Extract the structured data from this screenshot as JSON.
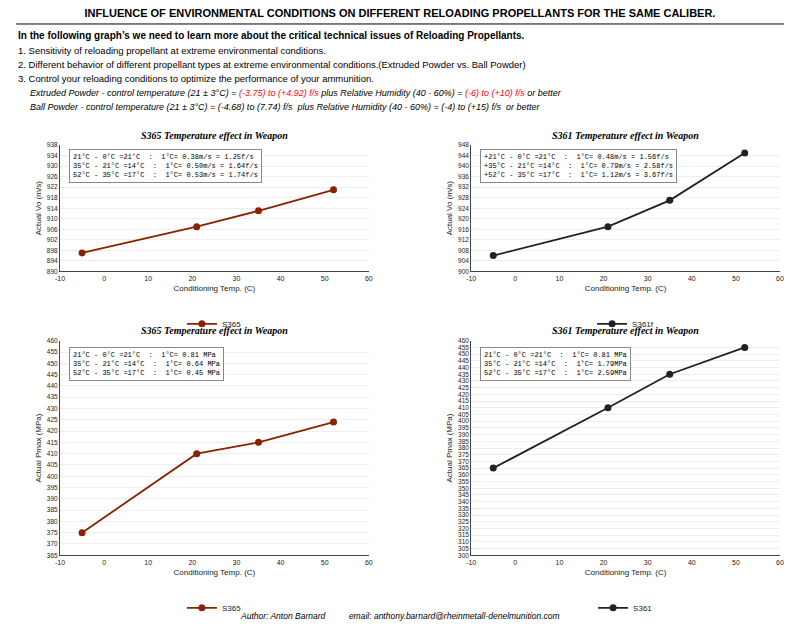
{
  "title": "INFLUENCE OF ENVIRONMENTAL CONDITIONS ON DIFFERENT RELOADING PROPELLANTS FOR THE SAME CALIBER.",
  "subtitle": "In the following graph’s we need to learn more about the critical technical issues of Reloading Propellants.",
  "annotations": [
    "1. Sensitivity of reloading propellant at extreme environmental conditions.",
    "2. Different behavior of different propellant types at extreme environmental conditions.(Extruded Powder vs. Ball Powder)",
    "3. Control your reloading conditions to optimize the performance of your ammunition.",
    [
      {
        "text": "Extruded Powder - control temperature (21 ± 3°C) = ",
        "color": "black"
      },
      {
        "text": "(-3.75) to (+4.92) f/s",
        "color": "red"
      },
      {
        "text": " plus Relative Humidity (40 - 60%) = ",
        "color": "black"
      },
      {
        "text": "(-6) to (+10) f/s",
        "color": "red"
      },
      {
        "text": " or better",
        "color": "black"
      }
    ],
    [
      {
        "text": "Ball Powder - control temperature (21 ± 3°C) = (-4.68) to (7.74) f/s  plus Relative Humidity (40 - 60%) = (-4) to (+15) f/s  or better",
        "color": "black"
      }
    ]
  ],
  "footer": "Author: Anton Barnard          email: anthony.barnard@rheinmetall-denelmunition.com",
  "chart_data": [
    {
      "type": "line",
      "title": "S365 Temperature effect in Weapon",
      "xlabel": "Conditioning Temp. (C)",
      "ylabel": "Actual Vo (m/s)",
      "x": [
        -5,
        21,
        35,
        52
      ],
      "series": [
        {
          "name": "S365",
          "color": "#882200",
          "marker": "circle",
          "values": [
            897,
            907,
            913,
            921
          ]
        }
      ],
      "xlim": [
        -10,
        60
      ],
      "xticks": [
        -10,
        0,
        10,
        20,
        30,
        40,
        50,
        60
      ],
      "ylim": [
        890,
        938
      ],
      "yticks": [
        890,
        894,
        898,
        902,
        906,
        910,
        914,
        918,
        922,
        926,
        930,
        934,
        938
      ],
      "grid": "y",
      "legend": "bottom",
      "annotations": [
        "21°C - 0°C =21°C  :  1°C= 0.38m/s = 1.25f/s",
        "35°C - 21°C =14°C  :  1°C= 0.50m/s = 1.64f/s",
        "52°C - 35°C =17°C  :  1°C= 0.53m/s = 1.74f/s"
      ]
    },
    {
      "type": "line",
      "title": "S361 Temperature effect in Weapon",
      "xlabel": "Conditioning Temp. (C)",
      "ylabel": "Actual Vo (m/s)",
      "x": [
        -5,
        21,
        35,
        52
      ],
      "series": [
        {
          "name": "S361f",
          "color": "#222222",
          "marker": "circle",
          "values": [
            906,
            917,
            927,
            945
          ]
        }
      ],
      "xlim": [
        -10,
        60
      ],
      "xticks": [
        -10,
        0,
        10,
        20,
        30,
        40,
        50,
        60
      ],
      "ylim": [
        900,
        948
      ],
      "yticks": [
        900,
        904,
        908,
        912,
        916,
        920,
        924,
        928,
        932,
        936,
        940,
        944,
        948
      ],
      "grid": "y",
      "legend": "bottom",
      "annotations": [
        "+21°C - 0°C =21°C  :  1°C= 0.48m/s = 1.56f/s",
        "+35°C - 21°C =14°C  :  1°C= 0.79m/s = 2.58f/s",
        "+52°C - 35°C =17°C  :  1°C= 1.12m/s = 3.67f/s"
      ]
    },
    {
      "type": "line",
      "title": "S365 Temperature effect in Weapon",
      "xlabel": "Conditioning Temp. (C)",
      "ylabel": "Actual Pmax (MPa)",
      "x": [
        -5,
        21,
        35,
        52
      ],
      "series": [
        {
          "name": "S365",
          "color": "#882200",
          "marker": "circle",
          "values": [
            375,
            410,
            415,
            424
          ]
        }
      ],
      "xlim": [
        -10,
        60
      ],
      "xticks": [
        -10,
        0,
        10,
        20,
        30,
        40,
        50,
        60
      ],
      "ylim": [
        365,
        460
      ],
      "yticks": [
        365,
        370,
        375,
        380,
        385,
        390,
        395,
        400,
        405,
        410,
        415,
        420,
        425,
        430,
        435,
        440,
        445,
        450,
        455,
        460
      ],
      "grid": "y",
      "legend": "bottom",
      "annotations": [
        "21°C - 0°C =21°C  :  1°C= 0.81 MPa",
        "35°C - 21°C =14°C  :  1°C= 0.64 MPa",
        "52°C - 35°C =17°C  :  1°C= 0.45 MPa"
      ]
    },
    {
      "type": "line",
      "title": "S361 Temperature effect in Weapon",
      "xlabel": "Conditioning Temp. (C)",
      "ylabel": "Actual Pmax (MPa)",
      "x": [
        -5,
        21,
        35,
        52
      ],
      "series": [
        {
          "name": "S361",
          "color": "#222222",
          "marker": "circle",
          "values": [
            365,
            410,
            435,
            455
          ]
        }
      ],
      "xlim": [
        -10,
        60
      ],
      "xticks": [
        -10,
        0,
        10,
        20,
        30,
        40,
        50,
        60
      ],
      "ylim": [
        300,
        460
      ],
      "yticks": [
        300,
        305,
        310,
        315,
        320,
        325,
        330,
        335,
        340,
        345,
        350,
        355,
        360,
        365,
        370,
        375,
        380,
        385,
        390,
        395,
        400,
        405,
        410,
        415,
        420,
        425,
        430,
        435,
        440,
        445,
        450,
        455,
        460
      ],
      "grid": "y",
      "legend": "bottom",
      "annotations": [
        "21°C - 0°C =21°C  :  1°C= 0.81 MPa",
        "35°C - 21°C =14°C  :  1°C= 1.79MPa",
        "52°C - 35°C =17°C  :  1°C= 2.59MPa"
      ]
    }
  ]
}
